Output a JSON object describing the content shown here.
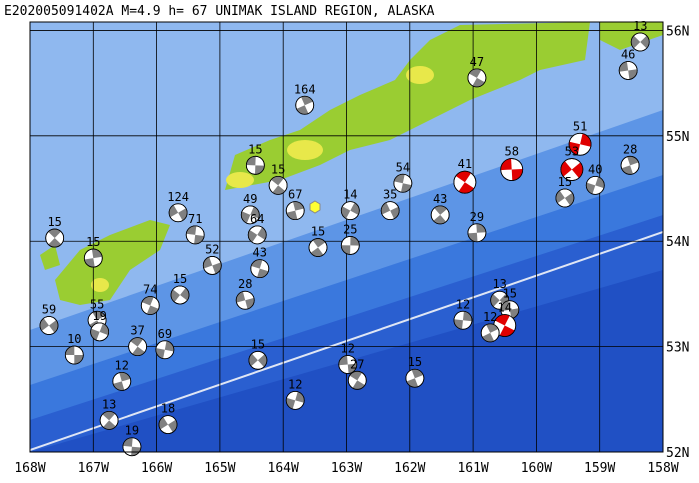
{
  "map": {
    "title": "E202005091402A M=4.9 h= 67 UNIMAK ISLAND REGION, ALASKA",
    "lonlim": [
      -168,
      -158
    ],
    "latlim": [
      52,
      56.08
    ],
    "lonticks": [
      {
        "value": -168,
        "label": "168W"
      },
      {
        "value": -167,
        "label": "167W"
      },
      {
        "value": -166,
        "label": "166W"
      },
      {
        "value": -165,
        "label": "165W"
      },
      {
        "value": -164,
        "label": "164W"
      },
      {
        "value": -163,
        "label": "163W"
      },
      {
        "value": -162,
        "label": "162W"
      },
      {
        "value": -161,
        "label": "161W"
      },
      {
        "value": -160,
        "label": "160W"
      },
      {
        "value": -159,
        "label": "159W"
      },
      {
        "value": -158,
        "label": "158W"
      }
    ],
    "latticks": [
      {
        "value": 52,
        "label": "52N"
      },
      {
        "value": 53,
        "label": "53N"
      },
      {
        "value": 54,
        "label": "54N"
      },
      {
        "value": 55,
        "label": "55N"
      },
      {
        "value": 56,
        "label": "56N"
      }
    ],
    "events": [
      {
        "lon": -158.36,
        "lat": 55.89,
        "depth": 13
      },
      {
        "lon": -158.55,
        "lat": 55.62,
        "depth": 46
      },
      {
        "lon": -160.94,
        "lat": 55.55,
        "depth": 47
      },
      {
        "lon": -163.66,
        "lat": 55.29,
        "depth": 164
      },
      {
        "lon": -159.31,
        "lat": 54.92,
        "depth": 51,
        "color": "#e00000"
      },
      {
        "lon": -159.44,
        "lat": 54.68,
        "depth": 53,
        "color": "#e00000"
      },
      {
        "lon": -160.39,
        "lat": 54.68,
        "depth": 58,
        "color": "#e00000"
      },
      {
        "lon": -161.13,
        "lat": 54.56,
        "depth": 41,
        "color": "#e00000"
      },
      {
        "lon": -158.52,
        "lat": 54.72,
        "depth": 28
      },
      {
        "lon": -159.07,
        "lat": 54.53,
        "depth": 40
      },
      {
        "lon": -159.55,
        "lat": 54.41,
        "depth": 15
      },
      {
        "lon": -164.44,
        "lat": 54.72,
        "depth": 15
      },
      {
        "lon": -164.08,
        "lat": 54.53,
        "depth": 15
      },
      {
        "lon": -163.81,
        "lat": 54.29,
        "depth": 67
      },
      {
        "lon": -164.52,
        "lat": 54.25,
        "depth": 49
      },
      {
        "lon": -165.66,
        "lat": 54.27,
        "depth": 124
      },
      {
        "lon": -165.39,
        "lat": 54.06,
        "depth": 71
      },
      {
        "lon": -167.61,
        "lat": 54.03,
        "depth": 15
      },
      {
        "lon": -167.0,
        "lat": 53.84,
        "depth": 15
      },
      {
        "lon": -162.94,
        "lat": 54.29,
        "depth": 14
      },
      {
        "lon": -162.31,
        "lat": 54.29,
        "depth": 35
      },
      {
        "lon": -162.11,
        "lat": 54.55,
        "depth": 54
      },
      {
        "lon": -161.52,
        "lat": 54.25,
        "depth": 43
      },
      {
        "lon": -160.94,
        "lat": 54.08,
        "depth": 29
      },
      {
        "lon": -164.41,
        "lat": 54.06,
        "depth": 64
      },
      {
        "lon": -165.12,
        "lat": 53.77,
        "depth": 52
      },
      {
        "lon": -164.37,
        "lat": 53.74,
        "depth": 43
      },
      {
        "lon": -163.45,
        "lat": 53.94,
        "depth": 15
      },
      {
        "lon": -162.94,
        "lat": 53.96,
        "depth": 25
      },
      {
        "lon": -165.63,
        "lat": 53.49,
        "depth": 15
      },
      {
        "lon": -164.6,
        "lat": 53.44,
        "depth": 28
      },
      {
        "lon": -166.1,
        "lat": 53.39,
        "depth": 74
      },
      {
        "lon": -166.94,
        "lat": 53.25,
        "depth": 55
      },
      {
        "lon": -161.16,
        "lat": 53.25,
        "depth": 12
      },
      {
        "lon": -160.58,
        "lat": 53.44,
        "depth": 13
      },
      {
        "lon": -160.42,
        "lat": 53.35,
        "depth": 15
      },
      {
        "lon": -160.5,
        "lat": 53.2,
        "depth": 14,
        "color": "#e00000"
      },
      {
        "lon": -160.73,
        "lat": 53.13,
        "depth": 12
      },
      {
        "lon": -165.87,
        "lat": 52.97,
        "depth": 69
      },
      {
        "lon": -164.4,
        "lat": 52.87,
        "depth": 15
      },
      {
        "lon": -162.98,
        "lat": 52.83,
        "depth": 12
      },
      {
        "lon": -162.83,
        "lat": 52.68,
        "depth": 27
      },
      {
        "lon": -161.92,
        "lat": 52.7,
        "depth": 15
      },
      {
        "lon": -163.81,
        "lat": 52.49,
        "depth": 12
      },
      {
        "lon": -167.7,
        "lat": 53.2,
        "depth": 59
      },
      {
        "lon": -167.3,
        "lat": 52.92,
        "depth": 10
      },
      {
        "lon": -166.3,
        "lat": 53.0,
        "depth": 37
      },
      {
        "lon": -166.55,
        "lat": 52.67,
        "depth": 12
      },
      {
        "lon": -166.9,
        "lat": 53.14,
        "depth": 19
      },
      {
        "lon": -165.82,
        "lat": 52.26,
        "depth": 18
      },
      {
        "lon": -166.39,
        "lat": 52.05,
        "depth": 19
      },
      {
        "lon": -166.75,
        "lat": 52.3,
        "depth": 13
      }
    ]
  }
}
